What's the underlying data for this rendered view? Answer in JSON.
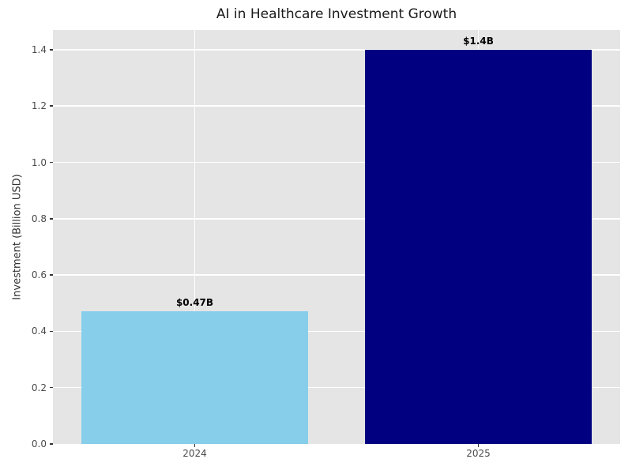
{
  "title": "AI in Healthcare Investment Growth",
  "chart_data": {
    "type": "bar",
    "title": "AI in Healthcare Investment Growth",
    "xlabel": "",
    "ylabel": "Investment (Billion USD)",
    "categories": [
      "2024",
      "2025"
    ],
    "values": [
      0.47,
      1.4
    ],
    "bar_labels": [
      "$0.47B",
      "$1.4B"
    ],
    "bar_colors": [
      "#87CEEB",
      "#000080"
    ],
    "ylim": [
      0,
      1.47
    ],
    "yticks": [
      0.0,
      0.2,
      0.4,
      0.6,
      0.8,
      1.0,
      1.2,
      1.4
    ],
    "ytick_labels": [
      "0.0",
      "0.2",
      "0.4",
      "0.6",
      "0.8",
      "1.0",
      "1.2",
      "1.4"
    ],
    "grid": true,
    "legend_position": "none",
    "plot_background": "#e5e5e5",
    "grid_color": "#ffffff",
    "tick_color": "#4a4a4a",
    "bar_width_fraction": 0.8
  }
}
